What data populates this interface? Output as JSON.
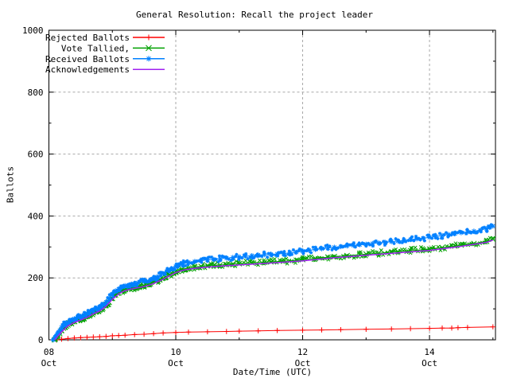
{
  "colors": {
    "background": "#ffffff",
    "border": "#000000",
    "grid": "#a8a8a8",
    "text": "#000000",
    "rejected": "#ff0000",
    "tallied": "#00a000",
    "received": "#0080ff",
    "acknowledgements": "#a020f0"
  },
  "chart_data": {
    "type": "line",
    "title": "General Resolution: Recall the project leader",
    "xlabel": "Date/Time (UTC)",
    "ylabel": "Ballots",
    "ylim": [
      0,
      1000
    ],
    "xlim": [
      0,
      7.04
    ],
    "x_unit": "days since 08 Oct 00:00 UTC",
    "grid": {
      "y": [
        200,
        400,
        600,
        800
      ],
      "x_days": [
        2,
        4,
        6
      ]
    },
    "y_axis": {
      "major_ticks": [
        {
          "pos": 0,
          "label": "0"
        },
        {
          "pos": 200,
          "label": "200"
        },
        {
          "pos": 400,
          "label": "400"
        },
        {
          "pos": 600,
          "label": "600"
        },
        {
          "pos": 800,
          "label": "800"
        },
        {
          "pos": 1000,
          "label": "1000"
        }
      ],
      "minor_ticks": [
        100,
        300,
        500,
        700,
        900
      ]
    },
    "x_axis": {
      "major_ticks": [
        {
          "pos": 0,
          "line1": "08",
          "line2": "Oct"
        },
        {
          "pos": 2,
          "line1": "10",
          "line2": "Oct"
        },
        {
          "pos": 4,
          "line1": "12",
          "line2": "Oct"
        },
        {
          "pos": 6,
          "line1": "14",
          "line2": "Oct"
        }
      ],
      "minor_ticks": [
        1,
        3,
        5,
        7
      ]
    },
    "series": [
      {
        "name": "Rejected Ballots",
        "color": "#ff0000",
        "marker": "plus",
        "band": false,
        "points": [
          [
            0.12,
            0
          ],
          [
            0.2,
            2
          ],
          [
            0.3,
            4
          ],
          [
            0.4,
            6
          ],
          [
            0.5,
            7
          ],
          [
            0.6,
            8
          ],
          [
            0.7,
            9
          ],
          [
            0.8,
            10
          ],
          [
            0.9,
            11
          ],
          [
            1.0,
            13
          ],
          [
            1.1,
            14
          ],
          [
            1.2,
            15
          ],
          [
            1.35,
            17
          ],
          [
            1.5,
            18
          ],
          [
            1.65,
            20
          ],
          [
            1.8,
            22
          ],
          [
            2.0,
            24
          ],
          [
            2.2,
            25
          ],
          [
            2.5,
            26
          ],
          [
            2.8,
            27
          ],
          [
            3.0,
            28
          ],
          [
            3.3,
            29
          ],
          [
            3.6,
            30
          ],
          [
            4.0,
            31
          ],
          [
            4.3,
            32
          ],
          [
            4.6,
            33
          ],
          [
            5.0,
            34
          ],
          [
            5.4,
            35
          ],
          [
            5.7,
            36
          ],
          [
            6.0,
            37
          ],
          [
            6.2,
            38
          ],
          [
            6.35,
            38
          ],
          [
            6.45,
            39
          ],
          [
            6.6,
            40
          ],
          [
            7.0,
            42
          ]
        ]
      },
      {
        "name": "Vote Tallied,",
        "color": "#00a000",
        "marker": "cross",
        "band": true,
        "points": [
          [
            0.09,
            0
          ],
          [
            0.13,
            10
          ],
          [
            0.17,
            20
          ],
          [
            0.2,
            30
          ],
          [
            0.25,
            40
          ],
          [
            0.3,
            48
          ],
          [
            0.35,
            54
          ],
          [
            0.4,
            59
          ],
          [
            0.45,
            63
          ],
          [
            0.5,
            67
          ],
          [
            0.55,
            71
          ],
          [
            0.6,
            76
          ],
          [
            0.65,
            82
          ],
          [
            0.7,
            87
          ],
          [
            0.75,
            91
          ],
          [
            0.8,
            96
          ],
          [
            0.85,
            102
          ],
          [
            0.9,
            111
          ],
          [
            0.95,
            121
          ],
          [
            1.0,
            134
          ],
          [
            1.05,
            145
          ],
          [
            1.1,
            151
          ],
          [
            1.15,
            157
          ],
          [
            1.2,
            162
          ],
          [
            1.3,
            167
          ],
          [
            1.4,
            171
          ],
          [
            1.5,
            175
          ],
          [
            1.6,
            181
          ],
          [
            1.7,
            189
          ],
          [
            1.8,
            199
          ],
          [
            1.9,
            210
          ],
          [
            2.0,
            220
          ],
          [
            2.1,
            228
          ],
          [
            2.2,
            232
          ],
          [
            2.3,
            235
          ],
          [
            2.4,
            237
          ],
          [
            2.5,
            239
          ],
          [
            2.6,
            241
          ],
          [
            2.7,
            242
          ],
          [
            2.8,
            243
          ],
          [
            2.9,
            245
          ],
          [
            3.0,
            246
          ],
          [
            3.2,
            249
          ],
          [
            3.4,
            251
          ],
          [
            3.5,
            252
          ],
          [
            3.7,
            254
          ],
          [
            3.9,
            257
          ],
          [
            4.0,
            259
          ],
          [
            4.2,
            263
          ],
          [
            4.4,
            267
          ],
          [
            4.5,
            269
          ],
          [
            4.7,
            272
          ],
          [
            4.9,
            275
          ],
          [
            5.0,
            277
          ],
          [
            5.2,
            280
          ],
          [
            5.4,
            283
          ],
          [
            5.5,
            285
          ],
          [
            5.7,
            288
          ],
          [
            5.9,
            291
          ],
          [
            6.0,
            293
          ],
          [
            6.2,
            298
          ],
          [
            6.4,
            303
          ],
          [
            6.5,
            306
          ],
          [
            6.7,
            311
          ],
          [
            6.9,
            318
          ],
          [
            7.0,
            325
          ]
        ]
      },
      {
        "name": "Received Ballots",
        "color": "#0080ff",
        "marker": "star",
        "band": true,
        "points": [
          [
            0.07,
            0
          ],
          [
            0.1,
            8
          ],
          [
            0.13,
            18
          ],
          [
            0.17,
            30
          ],
          [
            0.2,
            40
          ],
          [
            0.25,
            50
          ],
          [
            0.3,
            57
          ],
          [
            0.35,
            63
          ],
          [
            0.4,
            68
          ],
          [
            0.45,
            72
          ],
          [
            0.5,
            76
          ],
          [
            0.55,
            80
          ],
          [
            0.6,
            85
          ],
          [
            0.65,
            92
          ],
          [
            0.7,
            97
          ],
          [
            0.75,
            101
          ],
          [
            0.8,
            106
          ],
          [
            0.85,
            112
          ],
          [
            0.9,
            122
          ],
          [
            0.95,
            133
          ],
          [
            1.0,
            147
          ],
          [
            1.05,
            158
          ],
          [
            1.1,
            164
          ],
          [
            1.15,
            170
          ],
          [
            1.2,
            175
          ],
          [
            1.3,
            180
          ],
          [
            1.4,
            184
          ],
          [
            1.5,
            188
          ],
          [
            1.6,
            194
          ],
          [
            1.7,
            203
          ],
          [
            1.8,
            214
          ],
          [
            1.9,
            226
          ],
          [
            2.0,
            237
          ],
          [
            2.05,
            242
          ],
          [
            2.1,
            246
          ],
          [
            2.2,
            250
          ],
          [
            2.3,
            253
          ],
          [
            2.4,
            256
          ],
          [
            2.5,
            258
          ],
          [
            2.6,
            260
          ],
          [
            2.7,
            262
          ],
          [
            2.8,
            264
          ],
          [
            2.9,
            266
          ],
          [
            3.0,
            268
          ],
          [
            3.1,
            270
          ],
          [
            3.2,
            272
          ],
          [
            3.3,
            274
          ],
          [
            3.4,
            275
          ],
          [
            3.5,
            276
          ],
          [
            3.6,
            277
          ],
          [
            3.7,
            279
          ],
          [
            3.8,
            281
          ],
          [
            3.9,
            283
          ],
          [
            4.0,
            286
          ],
          [
            4.1,
            289
          ],
          [
            4.2,
            292
          ],
          [
            4.3,
            294
          ],
          [
            4.4,
            297
          ],
          [
            4.5,
            299
          ],
          [
            4.6,
            301
          ],
          [
            4.7,
            303
          ],
          [
            4.8,
            305
          ],
          [
            4.9,
            307
          ],
          [
            5.0,
            309
          ],
          [
            5.1,
            311
          ],
          [
            5.2,
            313
          ],
          [
            5.3,
            315
          ],
          [
            5.4,
            317
          ],
          [
            5.5,
            319
          ],
          [
            5.6,
            321
          ],
          [
            5.7,
            324
          ],
          [
            5.8,
            326
          ],
          [
            5.9,
            328
          ],
          [
            6.0,
            331
          ],
          [
            6.1,
            334
          ],
          [
            6.2,
            337
          ],
          [
            6.3,
            340
          ],
          [
            6.4,
            343
          ],
          [
            6.5,
            346
          ],
          [
            6.6,
            348
          ],
          [
            6.7,
            351
          ],
          [
            6.8,
            354
          ],
          [
            6.9,
            359
          ],
          [
            6.95,
            363
          ],
          [
            7.0,
            367
          ]
        ]
      },
      {
        "name": "Acknowledgements",
        "color": "#a020f0",
        "marker": "none",
        "band": false,
        "points": [
          [
            0.09,
            0
          ],
          [
            0.2,
            26
          ],
          [
            0.3,
            45
          ],
          [
            0.4,
            56
          ],
          [
            0.5,
            64
          ],
          [
            0.6,
            72
          ],
          [
            0.7,
            84
          ],
          [
            0.8,
            93
          ],
          [
            0.9,
            108
          ],
          [
            1.0,
            131
          ],
          [
            1.1,
            148
          ],
          [
            1.2,
            159
          ],
          [
            1.3,
            164
          ],
          [
            1.4,
            168
          ],
          [
            1.5,
            172
          ],
          [
            1.6,
            178
          ],
          [
            1.7,
            186
          ],
          [
            1.8,
            196
          ],
          [
            1.9,
            207
          ],
          [
            2.0,
            217
          ],
          [
            2.1,
            224
          ],
          [
            2.2,
            228
          ],
          [
            2.3,
            231
          ],
          [
            2.5,
            235
          ],
          [
            2.7,
            238
          ],
          [
            3.0,
            242
          ],
          [
            3.5,
            248
          ],
          [
            4.0,
            255
          ],
          [
            4.5,
            265
          ],
          [
            5.0,
            273
          ],
          [
            5.5,
            281
          ],
          [
            6.0,
            289
          ],
          [
            6.5,
            302
          ],
          [
            6.9,
            315
          ],
          [
            7.0,
            322
          ]
        ]
      }
    ],
    "legend_position": "top-left-inside"
  }
}
